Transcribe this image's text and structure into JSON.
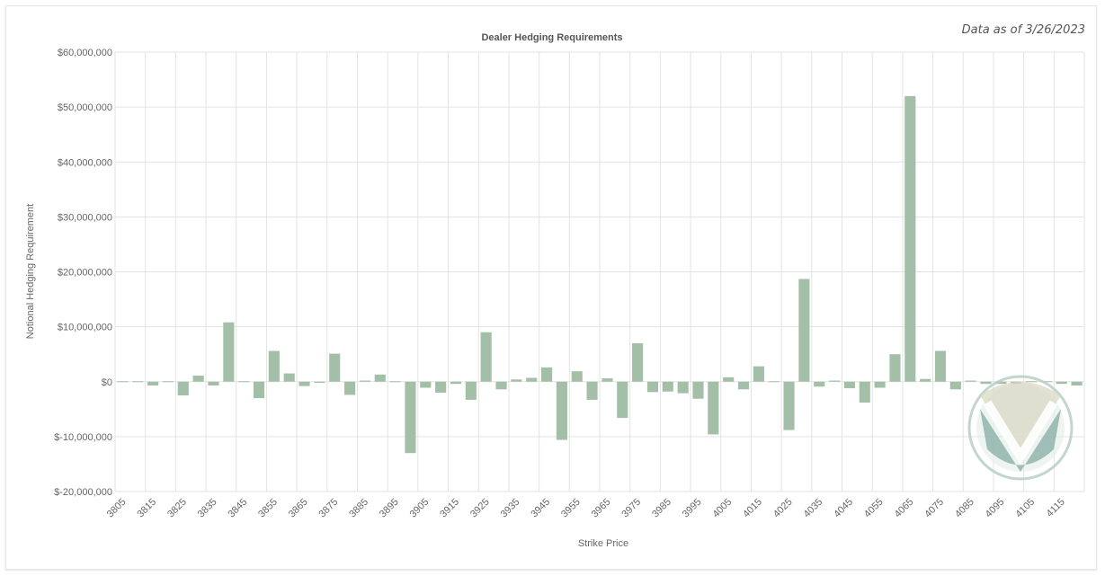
{
  "header": {
    "data_as_of": "Data as of 3/26/2023"
  },
  "chart_data": {
    "type": "bar",
    "title": "Dealer Hedging Requirements",
    "xlabel": "Strike Price",
    "ylabel": "Notional Hedging Requirement",
    "ylim": [
      -20000000,
      60000000
    ],
    "y_ticks": [
      "$60,000,000",
      "$50,000,000",
      "$40,000,000",
      "$30,000,000",
      "$20,000,000",
      "$10,000,000",
      "$0",
      "$-10,000,000",
      "$-20,000,000"
    ],
    "y_tick_values": [
      60000000,
      50000000,
      40000000,
      30000000,
      20000000,
      10000000,
      0,
      -10000000,
      -20000000
    ],
    "x_tick_labels": [
      "3805",
      "3815",
      "3825",
      "3835",
      "3845",
      "3855",
      "3865",
      "3875",
      "3885",
      "3895",
      "3905",
      "3915",
      "3925",
      "3935",
      "3945",
      "3955",
      "3965",
      "3975",
      "3985",
      "3995",
      "4005",
      "4015",
      "4025",
      "4035",
      "4045",
      "4055",
      "4065",
      "4075",
      "4085",
      "4095",
      "4105",
      "4115"
    ],
    "grid": true,
    "bar_color": "#a3bfa8",
    "categories": [
      "3805",
      "3810",
      "3815",
      "3820",
      "3825",
      "3830",
      "3835",
      "3840",
      "3845",
      "3850",
      "3855",
      "3860",
      "3865",
      "3870",
      "3875",
      "3880",
      "3885",
      "3890",
      "3895",
      "3900",
      "3905",
      "3910",
      "3915",
      "3920",
      "3925",
      "3930",
      "3935",
      "3940",
      "3945",
      "3950",
      "3955",
      "3960",
      "3965",
      "3970",
      "3975",
      "3980",
      "3985",
      "3990",
      "3995",
      "4000",
      "4005",
      "4010",
      "4015",
      "4020",
      "4025",
      "4030",
      "4035",
      "4040",
      "4045",
      "4050",
      "4055",
      "4060",
      "4065",
      "4070",
      "4075",
      "4080",
      "4085",
      "4090",
      "4095",
      "4100",
      "4105",
      "4110",
      "4115",
      "4120"
    ],
    "values": [
      -100000,
      -100000,
      -700000,
      -100000,
      -2500000,
      1100000,
      -700000,
      10800000,
      100000,
      -3000000,
      5600000,
      1500000,
      -800000,
      -200000,
      5100000,
      -2400000,
      200000,
      1300000,
      0,
      -13000000,
      -1100000,
      -2000000,
      -400000,
      -3300000,
      9000000,
      -1400000,
      400000,
      700000,
      2600000,
      -10600000,
      1900000,
      -3300000,
      600000,
      -6600000,
      7000000,
      -1900000,
      -1800000,
      -2100000,
      -3100000,
      -9600000,
      800000,
      -1400000,
      2800000,
      0,
      -8800000,
      18700000,
      -900000,
      200000,
      -1200000,
      -3800000,
      -1100000,
      5000000,
      52000000,
      500000,
      5600000,
      -1400000,
      200000,
      -400000,
      -400000,
      -400000,
      -100000,
      -100000,
      -400000,
      -700000
    ]
  }
}
